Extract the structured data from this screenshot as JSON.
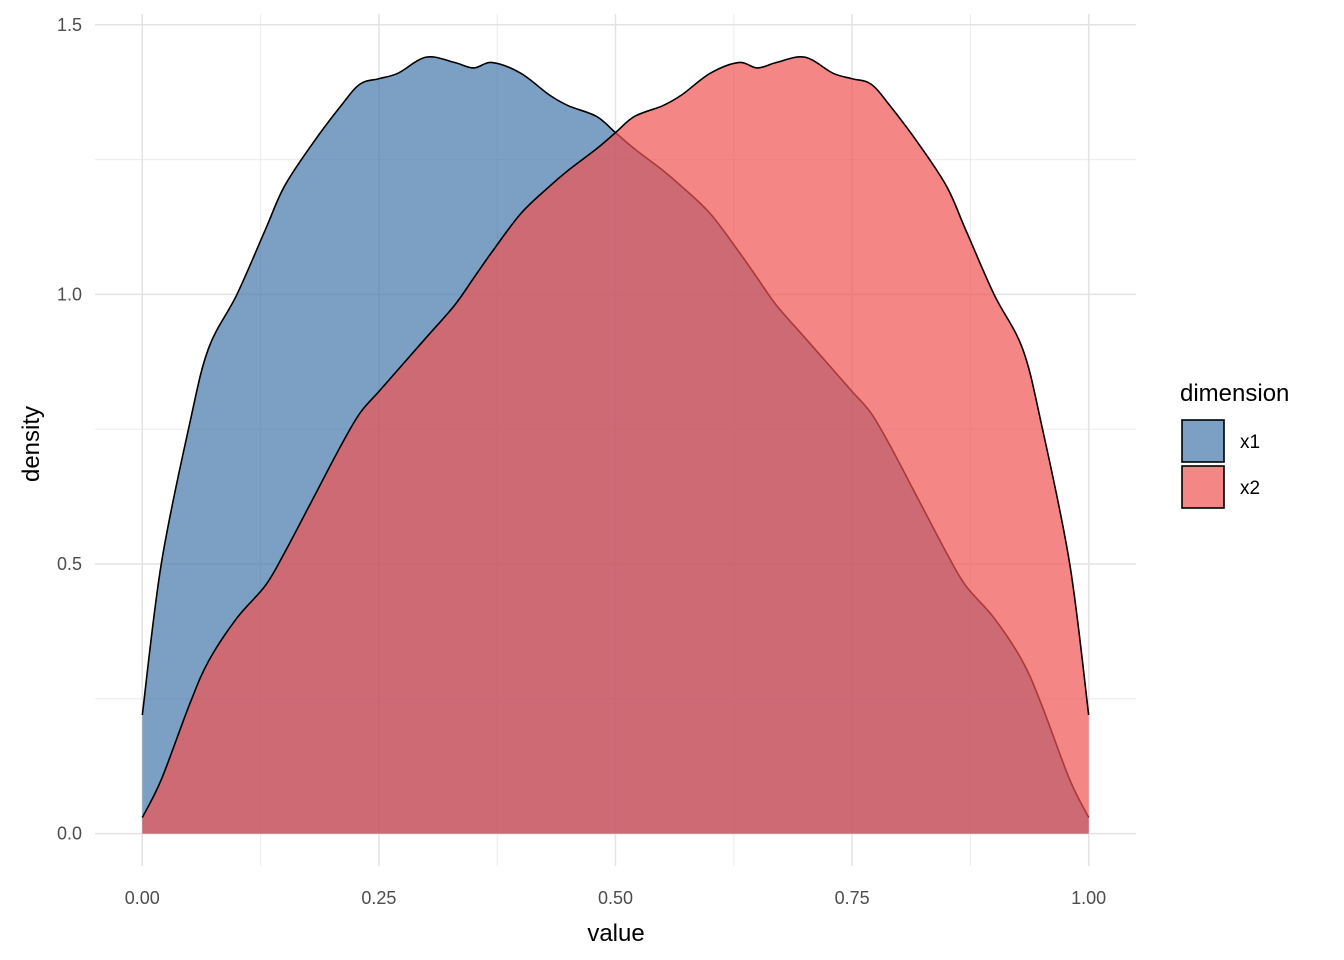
{
  "chart_data": {
    "type": "area",
    "xlabel": "value",
    "ylabel": "density",
    "xlim": [
      -0.05,
      1.05
    ],
    "ylim": [
      -0.06,
      1.52
    ],
    "x_ticks": [
      0.0,
      0.25,
      0.5,
      0.75,
      1.0
    ],
    "x_tick_labels": [
      "0.00",
      "0.25",
      "0.50",
      "0.75",
      "1.00"
    ],
    "y_ticks": [
      0.0,
      0.5,
      1.0,
      1.5
    ],
    "y_tick_labels": [
      "0.0",
      "0.5",
      "1.0",
      "1.5"
    ],
    "grid": true,
    "legend": {
      "title": "dimension",
      "position": "right",
      "items": [
        {
          "label": "x1",
          "color": "#4477aa"
        },
        {
          "label": "x2",
          "color": "#f05252"
        }
      ]
    },
    "x": [
      0.0,
      0.02,
      0.05,
      0.07,
      0.1,
      0.13,
      0.15,
      0.18,
      0.21,
      0.23,
      0.25,
      0.27,
      0.3,
      0.33,
      0.35,
      0.37,
      0.4,
      0.43,
      0.45,
      0.48,
      0.5,
      0.52,
      0.55,
      0.57,
      0.6,
      0.63,
      0.65,
      0.67,
      0.7,
      0.73,
      0.75,
      0.77,
      0.79,
      0.82,
      0.85,
      0.87,
      0.9,
      0.93,
      0.95,
      0.98,
      1.0
    ],
    "series": [
      {
        "name": "x1",
        "color": "#4477aa",
        "values": [
          0.22,
          0.5,
          0.76,
          0.9,
          1.0,
          1.12,
          1.2,
          1.28,
          1.35,
          1.39,
          1.4,
          1.41,
          1.44,
          1.43,
          1.42,
          1.43,
          1.41,
          1.37,
          1.35,
          1.33,
          1.3,
          1.27,
          1.23,
          1.2,
          1.15,
          1.08,
          1.03,
          0.98,
          0.92,
          0.86,
          0.82,
          0.78,
          0.72,
          0.62,
          0.52,
          0.46,
          0.4,
          0.32,
          0.24,
          0.1,
          0.03
        ]
      },
      {
        "name": "x2",
        "color": "#f05252",
        "values": [
          0.03,
          0.1,
          0.24,
          0.32,
          0.4,
          0.46,
          0.52,
          0.62,
          0.72,
          0.78,
          0.82,
          0.86,
          0.92,
          0.98,
          1.03,
          1.08,
          1.15,
          1.2,
          1.23,
          1.27,
          1.3,
          1.33,
          1.35,
          1.37,
          1.41,
          1.43,
          1.42,
          1.43,
          1.44,
          1.41,
          1.4,
          1.39,
          1.35,
          1.28,
          1.2,
          1.12,
          1.0,
          0.9,
          0.76,
          0.5,
          0.22
        ]
      }
    ]
  }
}
